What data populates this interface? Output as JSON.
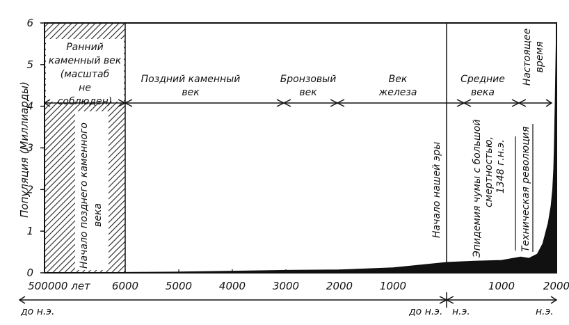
{
  "chart_data": {
    "type": "area",
    "ylabel": "Популяция (Миллиарды)",
    "y_ticks": [
      "0",
      "1",
      "2",
      "3",
      "4",
      "5",
      "6"
    ],
    "ylim": [
      0,
      6
    ],
    "x_ticks": [
      "500000 лет",
      "6000",
      "5000",
      "4000",
      "3000",
      "2000",
      "1000",
      "1000",
      "2000"
    ],
    "era_labels": {
      "bc_left": "до н.э.",
      "bc_right": "до н.э.",
      "ad_left": "н.э.",
      "ad_right": "н.э."
    },
    "periods": [
      {
        "name": "Ранний каменный век (масштаб не соблюден)",
        "lines": [
          "Ранний",
          "каменный век",
          "(масштаб",
          "не",
          "соблюден)"
        ]
      },
      {
        "name": "Поздний каменный век",
        "lines": [
          "Поздний каменный",
          "век"
        ]
      },
      {
        "name": "Бронзовый век",
        "lines": [
          "Бронзовый",
          "век"
        ]
      },
      {
        "name": "Век железа",
        "lines": [
          "Век",
          "железа"
        ]
      },
      {
        "name": "Средние века",
        "lines": [
          "Средние",
          "века"
        ]
      },
      {
        "name": "Настоящее время",
        "lines": [
          "Настоящее",
          "время"
        ]
      }
    ],
    "annotations": {
      "late_stone_age_start": [
        "Начало позднего каменного",
        "века"
      ],
      "era_start": "Начало нашей эры",
      "plague": [
        "Эпидемия чумы с большой",
        "смертностью,",
        "1348 г.н.э."
      ],
      "industrial": "Техническая революция"
    },
    "series": [
      {
        "x": [
          -6000,
          -5000,
          -4000,
          -3000,
          -2000,
          -1000,
          0,
          500,
          1000,
          1348,
          1500,
          1650,
          1750,
          1800,
          1850,
          1900,
          1930,
          1950,
          1960,
          1970,
          1975,
          2000
        ],
        "values": [
          0.01,
          0.02,
          0.04,
          0.06,
          0.07,
          0.12,
          0.25,
          0.28,
          0.3,
          0.38,
          0.35,
          0.45,
          0.7,
          0.95,
          1.2,
          1.6,
          2.0,
          2.5,
          3.0,
          3.7,
          4.0,
          6.0
        ]
      }
    ],
    "colors": {
      "ink": "#111111",
      "background": "#ffffff"
    }
  }
}
